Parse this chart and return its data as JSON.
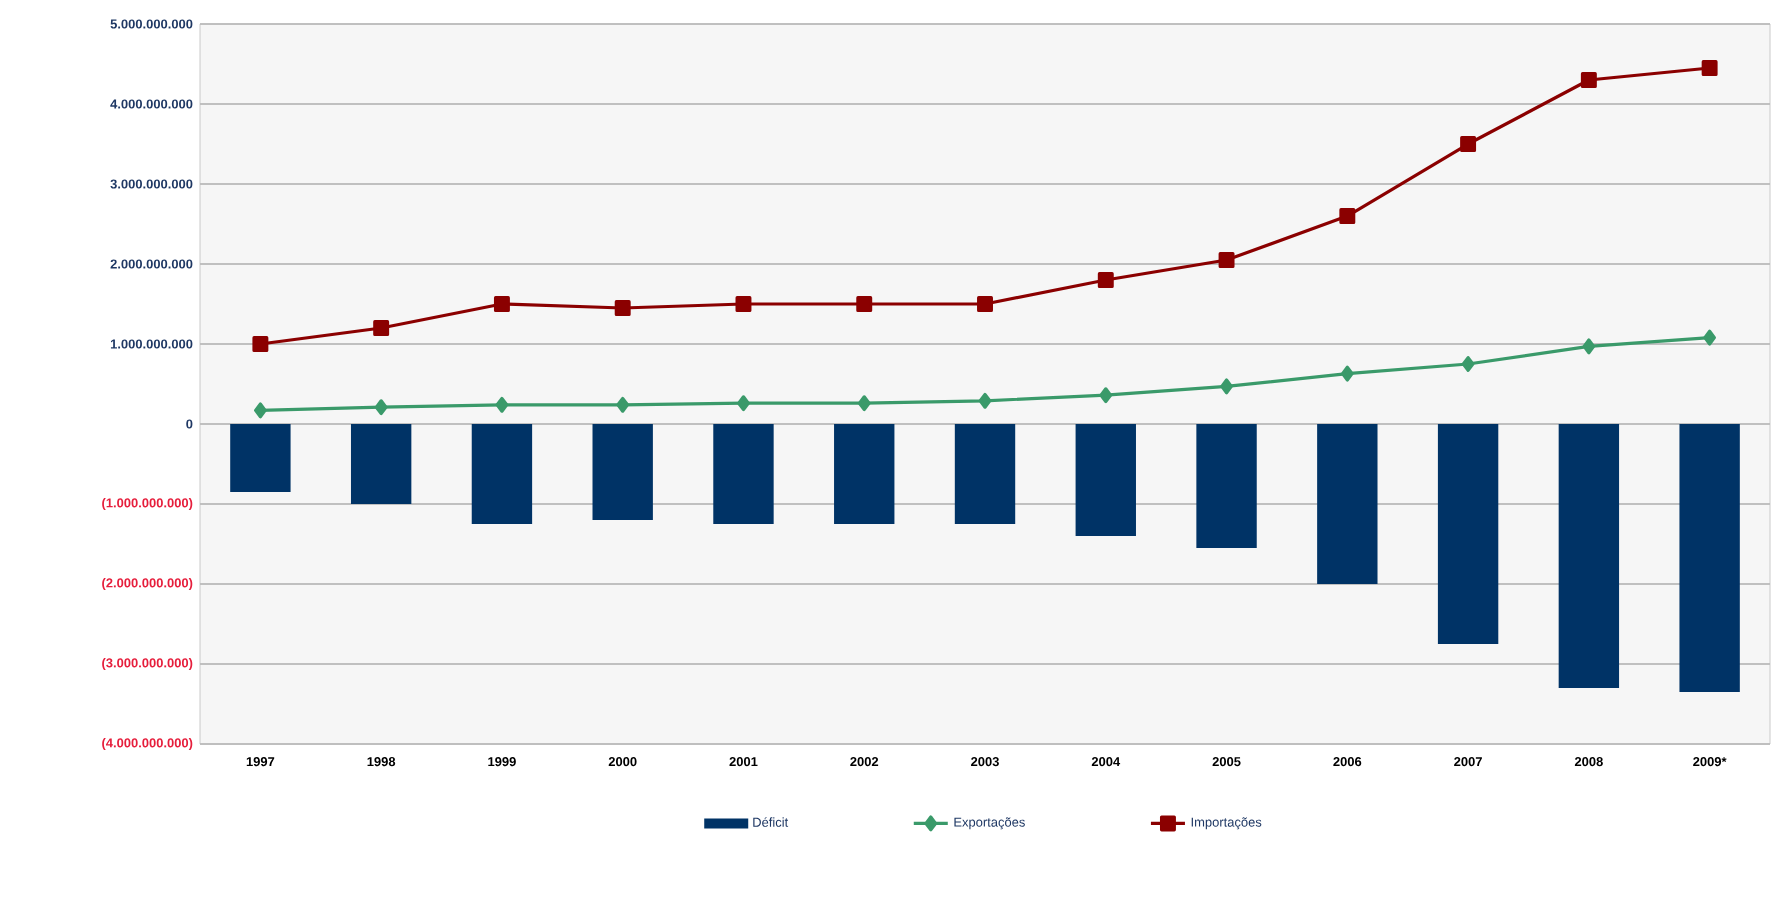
{
  "chart_data": {
    "type": "bar",
    "categories": [
      "1997",
      "1998",
      "1999",
      "2000",
      "2001",
      "2002",
      "2003",
      "2004",
      "2005",
      "2006",
      "2007",
      "2008",
      "2009*"
    ],
    "series": [
      {
        "name": "Déficit",
        "color": "#003366",
        "values": [
          -850000000,
          -1000000000,
          -1250000000,
          -1200000000,
          -1250000000,
          -1250000000,
          -1250000000,
          -1400000000,
          -1550000000,
          -2000000000,
          -2750000000,
          -3300000000,
          -3350000000
        ]
      },
      {
        "name": "Exportações",
        "type": "line",
        "color": "#3a9a6a",
        "marker": "diamond",
        "values": [
          170000000,
          210000000,
          240000000,
          240000000,
          260000000,
          260000000,
          290000000,
          360000000,
          470000000,
          630000000,
          750000000,
          970000000,
          1080000000
        ]
      },
      {
        "name": "Importações",
        "type": "line",
        "color": "#8b0000",
        "marker": "square",
        "values": [
          1000000000,
          1200000000,
          1500000000,
          1450000000,
          1500000000,
          1500000000,
          1500000000,
          1800000000,
          2050000000,
          2600000000,
          3500000000,
          4300000000,
          4450000000
        ]
      }
    ],
    "ylim": [
      -4000000000,
      5000000000
    ],
    "yticks": [
      {
        "value": -4000000000,
        "label": "(4.000.000.000)"
      },
      {
        "value": -3000000000,
        "label": "(3.000.000.000)"
      },
      {
        "value": -2000000000,
        "label": "(2.000.000.000)"
      },
      {
        "value": -1000000000,
        "label": "(1.000.000.000)"
      },
      {
        "value": 0,
        "label": "0"
      },
      {
        "value": 1000000000,
        "label": "1.000.000.000"
      },
      {
        "value": 2000000000,
        "label": "2.000.000.000"
      },
      {
        "value": 3000000000,
        "label": "3.000.000.000"
      },
      {
        "value": 4000000000,
        "label": "4.000.000.000"
      },
      {
        "value": 5000000000,
        "label": "5.000.000.000"
      }
    ],
    "grid": "y",
    "legend": "bottom"
  }
}
